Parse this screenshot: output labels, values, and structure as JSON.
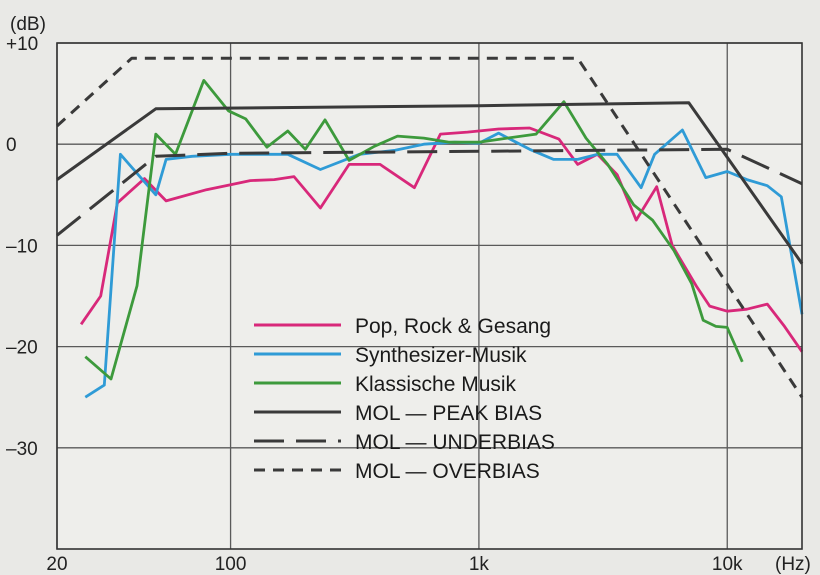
{
  "chart_data": {
    "type": "line",
    "y_unit_label": "(dB)",
    "x_unit_label": "(Hz)",
    "x_scale": "log",
    "xlim": [
      20,
      20000
    ],
    "ylim": [
      -40,
      10
    ],
    "x_ticks": [
      {
        "value": 20,
        "label": "20"
      },
      {
        "value": 100,
        "label": "100"
      },
      {
        "value": 1000,
        "label": "1k"
      },
      {
        "value": 10000,
        "label": "10k"
      }
    ],
    "y_ticks": [
      {
        "value": 10,
        "label": "+10"
      },
      {
        "value": 0,
        "label": "0"
      },
      {
        "value": -10,
        "label": "–10"
      },
      {
        "value": -20,
        "label": "–20"
      },
      {
        "value": -30,
        "label": "–30"
      }
    ],
    "grid": true,
    "legend_position": "lower-center",
    "series": [
      {
        "name": "Pop, Rock & Gesang",
        "color": "#d8287a",
        "dash": "solid",
        "x": [
          25,
          30,
          35,
          45,
          55,
          80,
          100,
          120,
          150,
          180,
          230,
          300,
          400,
          550,
          700,
          900,
          1200,
          1600,
          2100,
          2500,
          3000,
          3600,
          4300,
          5200,
          6000,
          7500,
          8500,
          10000,
          12000,
          14500,
          17000,
          20000
        ],
        "y": [
          -17.8,
          -15,
          -5.8,
          -3.4,
          -5.6,
          -4.5,
          -4.0,
          -3.6,
          -3.5,
          -3.2,
          -6.3,
          -2,
          -2,
          -4.3,
          1,
          1.2,
          1.5,
          1.6,
          0.5,
          -2,
          -1,
          -3,
          -7.5,
          -4.2,
          -10,
          -14,
          -16,
          -16.5,
          -16.3,
          -15.8,
          -18,
          -20.5
        ],
        "line_style": "solid"
      },
      {
        "name": "Synthesizer-Musik",
        "color": "#2f9bd6",
        "dash": "solid",
        "x": [
          26,
          31,
          36,
          50,
          55,
          70,
          100,
          130,
          170,
          230,
          330,
          460,
          600,
          800,
          1000,
          1200,
          1600,
          2000,
          2500,
          3000,
          3600,
          4500,
          5100,
          6600,
          8200,
          10000,
          12000,
          14500,
          16500,
          20000
        ],
        "y": [
          -25,
          -23.8,
          -1,
          -5,
          -1.5,
          -1.2,
          -1,
          -1,
          -1,
          -2.5,
          -1,
          -0.6,
          0,
          0.2,
          0.1,
          1.1,
          -0.5,
          -1.5,
          -1.5,
          -1,
          -1,
          -4.3,
          -1,
          1.4,
          -3.3,
          -2.7,
          -3.5,
          -4.1,
          -5.2,
          -16.8
        ],
        "line_style": "solid"
      },
      {
        "name": "Klassische Musik",
        "color": "#3d9a3c",
        "dash": "solid",
        "x": [
          26,
          33,
          42,
          50,
          60,
          78,
          98,
          115,
          140,
          170,
          200,
          240,
          300,
          380,
          470,
          600,
          760,
          1000,
          1300,
          1700,
          2200,
          2700,
          3300,
          4200,
          5000,
          6100,
          7200,
          8000,
          9000,
          10000,
          11500
        ],
        "y": [
          -21,
          -23.2,
          -14,
          1,
          -1,
          6.3,
          3.3,
          2.5,
          -0.3,
          1.3,
          -0.5,
          2.4,
          -1.6,
          -0.2,
          0.8,
          0.6,
          0.2,
          0.2,
          0.6,
          1,
          4.2,
          0.6,
          -2,
          -6,
          -7.5,
          -10.5,
          -13.8,
          -17.4,
          -18,
          -18.1,
          -21.5
        ],
        "line_style": "solid"
      },
      {
        "name": "MOL — PEAK BIAS",
        "color": "#3a3a3a",
        "dash": "solid",
        "x": [
          20,
          50,
          1000,
          7000,
          20000
        ],
        "y": [
          -3.5,
          3.5,
          3.8,
          4.1,
          -11.8
        ],
        "line_style": "solid"
      },
      {
        "name": "MOL — UNDERBIAS",
        "color": "#3a3a3a",
        "dash": "long-dash",
        "x": [
          20,
          50,
          100,
          1000,
          10000,
          20000
        ],
        "y": [
          -9,
          -1.2,
          -0.9,
          -0.7,
          -0.5,
          -3.9
        ],
        "line_style": "long-dash"
      },
      {
        "name": "MOL — OVERBIAS",
        "color": "#3a3a3a",
        "dash": "short-dash",
        "x": [
          20,
          40,
          2500,
          20000
        ],
        "y": [
          1.8,
          8.5,
          8.5,
          -25
        ],
        "line_style": "short-dash"
      }
    ]
  }
}
